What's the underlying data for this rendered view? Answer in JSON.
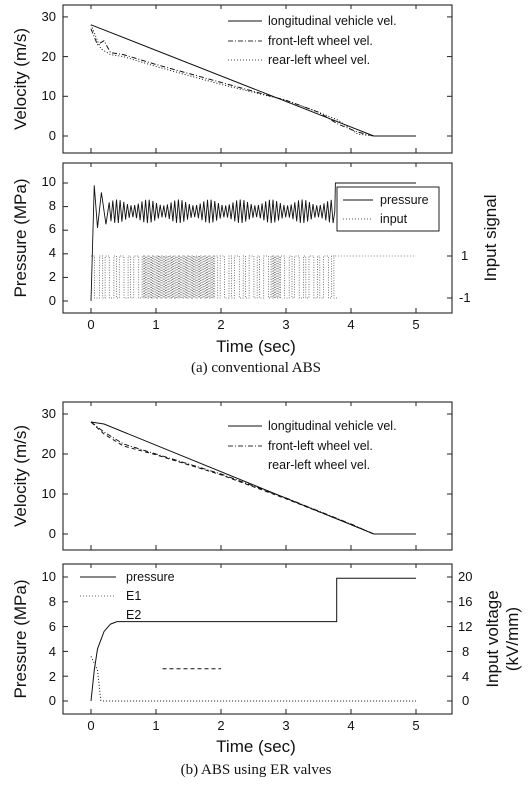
{
  "chart_data": [
    {
      "type": "line",
      "panel": "a-top",
      "ylabel": "Velocity (m/s)",
      "xlim": [
        -0.5,
        5.5
      ],
      "ylim": [
        -4,
        35
      ],
      "xticks": [
        0,
        1,
        2,
        3,
        4,
        5
      ],
      "yticks": [
        0,
        10,
        20,
        30
      ],
      "ytick_labels": [
        "0",
        "10",
        "20",
        "30"
      ],
      "legend_position": "top-right",
      "series": [
        {
          "name": "longitudinal vehicle vel.",
          "style": "solid",
          "x": [
            0,
            4.35,
            5.0
          ],
          "y": [
            28,
            0,
            0
          ]
        },
        {
          "name": "front-left wheel vel.",
          "style": "dashdot",
          "x": [
            0,
            0.1,
            0.2,
            0.3,
            0.5,
            1.0,
            2.0,
            3.0,
            3.5,
            3.8,
            4.1,
            4.35,
            5.0
          ],
          "y": [
            27,
            23,
            24,
            21,
            20.5,
            18,
            13.5,
            9,
            6,
            3,
            1,
            0,
            0
          ]
        },
        {
          "name": "rear-left wheel vel.",
          "style": "dotted",
          "x": [
            0,
            0.15,
            0.3,
            0.5,
            1.0,
            2.0,
            3.0,
            3.5,
            3.8,
            4.1,
            4.35,
            5.0
          ],
          "y": [
            28,
            22,
            20.5,
            20,
            17.5,
            13,
            9,
            6,
            4,
            0.5,
            0,
            0
          ]
        }
      ]
    },
    {
      "type": "line",
      "panel": "a-bottom",
      "xlabel": "Time (sec)",
      "ylabel": "Pressure (MPa)",
      "y2label": "Input signal",
      "xlim": [
        -0.5,
        5.5
      ],
      "ylim": [
        -0.5,
        11
      ],
      "xticks": [
        0,
        1,
        2,
        3,
        4,
        5
      ],
      "xtick_labels": [
        "0",
        "1",
        "2",
        "3",
        "4",
        "5"
      ],
      "yticks": [
        0,
        2,
        4,
        6,
        8,
        10
      ],
      "ytick_labels": [
        "0",
        "2",
        "4",
        "6",
        "8",
        "10"
      ],
      "y2ticks": [
        -1,
        1
      ],
      "y2tick_labels": [
        "-1",
        "1"
      ],
      "legend_position": "right",
      "series": [
        {
          "name": "pressure",
          "style": "solid",
          "description_values": {
            "start": 0,
            "peak": 9.8,
            "oscillation_center": 7.6,
            "oscillation_amplitude": 1.0,
            "oscillation_until": 3.75,
            "final": 10
          }
        },
        {
          "name": "input",
          "style": "dotted",
          "description_values": {
            "levels": [
              -1,
              1
            ],
            "switching_from": 0,
            "switching_until": 3.75
          }
        }
      ]
    },
    {
      "type": "line",
      "panel": "b-top",
      "ylabel": "Velocity (m/s)",
      "xlim": [
        -0.5,
        5.5
      ],
      "ylim": [
        -4,
        33
      ],
      "xticks": [
        0,
        1,
        2,
        3,
        4,
        5
      ],
      "yticks": [
        0,
        10,
        20,
        30
      ],
      "ytick_labels": [
        "0",
        "10",
        "20",
        "30"
      ],
      "legend_position": "top-right",
      "series": [
        {
          "name": "longitudinal vehicle vel.",
          "style": "solid",
          "x": [
            0,
            0.2,
            4.35,
            5.0
          ],
          "y": [
            28,
            27.5,
            0,
            0
          ]
        },
        {
          "name": "front-left wheel vel.",
          "style": "dashdot",
          "x": [
            0,
            0.2,
            0.5,
            1.0,
            2.0,
            3.0,
            4.0,
            4.35,
            5.0
          ],
          "y": [
            28,
            25.5,
            22.5,
            20,
            15,
            9,
            2.5,
            0,
            0
          ]
        },
        {
          "name": "rear-left wheel vel.",
          "style": "dashed",
          "x": [
            0,
            0.2,
            0.5,
            1.0,
            2.0,
            3.0,
            4.0,
            4.35,
            5.0
          ],
          "y": [
            28,
            25,
            22,
            19.8,
            14.8,
            8.8,
            2.4,
            0,
            0
          ]
        }
      ]
    },
    {
      "type": "line",
      "panel": "b-bottom",
      "xlabel": "Time (sec)",
      "ylabel": "Pressure (MPa)",
      "y2label": "Input voltage (kV/mm)",
      "xlim": [
        -0.5,
        5.5
      ],
      "ylim": [
        -0.5,
        10.5
      ],
      "xticks": [
        0,
        1,
        2,
        3,
        4,
        5
      ],
      "xtick_labels": [
        "0",
        "1",
        "2",
        "3",
        "4",
        "5"
      ],
      "yticks": [
        0,
        2,
        4,
        6,
        8,
        10
      ],
      "ytick_labels": [
        "0",
        "2",
        "4",
        "6",
        "8",
        "10"
      ],
      "y2ticks": [
        0,
        4,
        8,
        12,
        16,
        20
      ],
      "y2tick_labels": [
        "0",
        "4",
        "8",
        "12",
        "16",
        "20"
      ],
      "legend_position": "top-left",
      "series": [
        {
          "name": "pressure",
          "style": "solid",
          "x": [
            0,
            0.05,
            0.1,
            0.2,
            0.3,
            0.4,
            1.0,
            2.0,
            3.0,
            3.78,
            3.78,
            5.0
          ],
          "y": [
            0,
            2.5,
            4.2,
            5.6,
            6.2,
            6.4,
            6.4,
            6.4,
            6.4,
            6.4,
            9.9,
            9.9
          ]
        },
        {
          "name": "E1",
          "style": "dotted",
          "x": [
            0,
            0.1,
            0.15,
            0.2,
            5.0
          ],
          "y": [
            3.6,
            2.5,
            0.05,
            0,
            0
          ]
        },
        {
          "name": "E2",
          "style": "dashed",
          "x": [
            1.1,
            1.3,
            1.7,
            1.8,
            2.0
          ],
          "y": [
            2.6,
            2.6,
            2.6,
            2.6,
            2.6
          ]
        }
      ]
    }
  ],
  "captions": {
    "a": "(a) conventional ABS",
    "b": "(b) ABS using ER valves"
  },
  "text": {
    "a_top_ylabel": "Velocity (m/s)",
    "a_bot_ylabel": "Pressure (MPa)",
    "a_bot_y2label": "Input signal",
    "a_xlabel": "Time (sec)",
    "b_top_ylabel": "Velocity (m/s)",
    "b_bot_ylabel": "Pressure (MPa)",
    "b_bot_y2label_1": "Input voltage",
    "b_bot_y2label_2": "(kV/mm)",
    "b_xlabel": "Time (sec)",
    "leg_long": "longitudinal vehicle vel.",
    "leg_fl": "front-left wheel vel.",
    "leg_rl": "rear-left wheel vel.",
    "leg_pressure": "pressure",
    "leg_input": "input",
    "leg_e1": "E1",
    "leg_e2": "E2"
  },
  "ticks": {
    "x": [
      "0",
      "1",
      "2",
      "3",
      "4",
      "5"
    ],
    "vel": [
      "0",
      "10",
      "20",
      "30"
    ],
    "press": [
      "0",
      "2",
      "4",
      "6",
      "8",
      "10"
    ],
    "input_signal": [
      "-1",
      "1"
    ],
    "input_voltage": [
      "0",
      "4",
      "8",
      "12",
      "16",
      "20"
    ]
  },
  "colors": {
    "ink": "#111111",
    "frame": "#222222",
    "background": "#ffffff"
  }
}
